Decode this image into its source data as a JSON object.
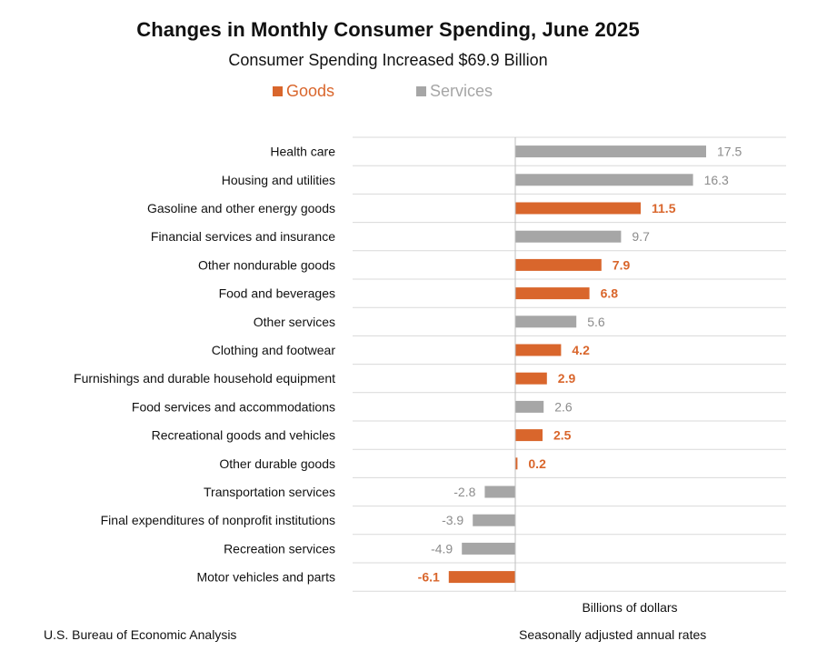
{
  "chart_data": {
    "type": "bar",
    "orientation": "horizontal",
    "title": "Changes in Monthly Consumer Spending, June 2025",
    "subtitle": "Consumer Spending Increased $69.9 Billion",
    "xlabel": "Billions of dollars",
    "ylabel": "",
    "xlim": [
      -8,
      18
    ],
    "legend": {
      "position": "top-center",
      "entries": [
        {
          "name": "Goods",
          "color": "#d9662c"
        },
        {
          "name": "Services",
          "color": "#a6a6a6"
        }
      ]
    },
    "grid": true,
    "categories": [
      "Health care",
      "Housing and utilities",
      "Gasoline and other energy goods",
      "Financial services and insurance",
      "Other nondurable goods",
      "Food and beverages",
      "Other services",
      "Clothing and footwear",
      "Furnishings and durable household equipment",
      "Food services and accommodations",
      "Recreational goods and vehicles",
      "Other durable goods",
      "Transportation services",
      "Final expenditures of nonprofit institutions",
      "Recreation services",
      "Motor vehicles and parts"
    ],
    "values": [
      17.5,
      16.3,
      11.5,
      9.7,
      7.9,
      6.8,
      5.6,
      4.2,
      2.9,
      2.6,
      2.5,
      0.2,
      -2.8,
      -3.9,
      -4.9,
      -6.1
    ],
    "value_labels": [
      "17.5",
      "16.3",
      "11.5",
      "9.7",
      "7.9",
      "6.8",
      "5.6",
      "4.2",
      "2.9",
      "2.6",
      "2.5",
      "0.2",
      "-2.8",
      "-3.9",
      "-4.9",
      "-6.1"
    ],
    "groups": [
      "Services",
      "Services",
      "Goods",
      "Services",
      "Goods",
      "Goods",
      "Services",
      "Goods",
      "Goods",
      "Services",
      "Goods",
      "Goods",
      "Services",
      "Services",
      "Services",
      "Goods"
    ]
  },
  "source": "U.S. Bureau of Economic Analysis",
  "note": "Seasonally adjusted annual rates",
  "colors": {
    "goods": "#d9662c",
    "services": "#a6a6a6",
    "grid": "#d9d9d9",
    "axis": "#bfbfbf"
  }
}
